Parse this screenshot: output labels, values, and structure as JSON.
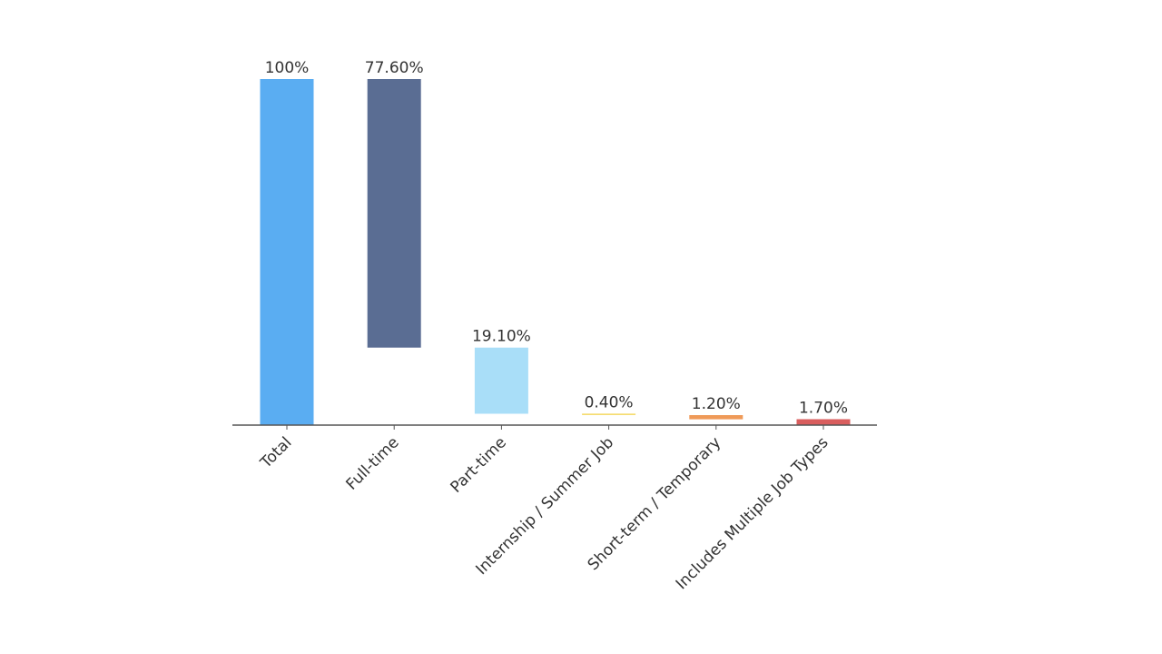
{
  "chart_data": {
    "type": "bar",
    "subtype": "waterfall",
    "title": "",
    "xlabel": "",
    "ylabel": "",
    "ylim": [
      0,
      100
    ],
    "grid": false,
    "legend": "none",
    "categories": [
      "Total",
      "Full-time",
      "Part-time",
      "Internship / Summer Job",
      "Short-term / Temporary",
      "Includes Multiple Job Types"
    ],
    "values": [
      100,
      77.6,
      19.1,
      0.4,
      1.2,
      1.7
    ],
    "value_labels": [
      "100%",
      "77.60%",
      "19.10%",
      "0.40%",
      "1.20%",
      "1.70%"
    ],
    "colors": [
      "#5aadf2",
      "#5a6d93",
      "#a9def8",
      "#f4d862",
      "#ef9a58",
      "#d95e5e"
    ],
    "axis_color": "#555555"
  }
}
